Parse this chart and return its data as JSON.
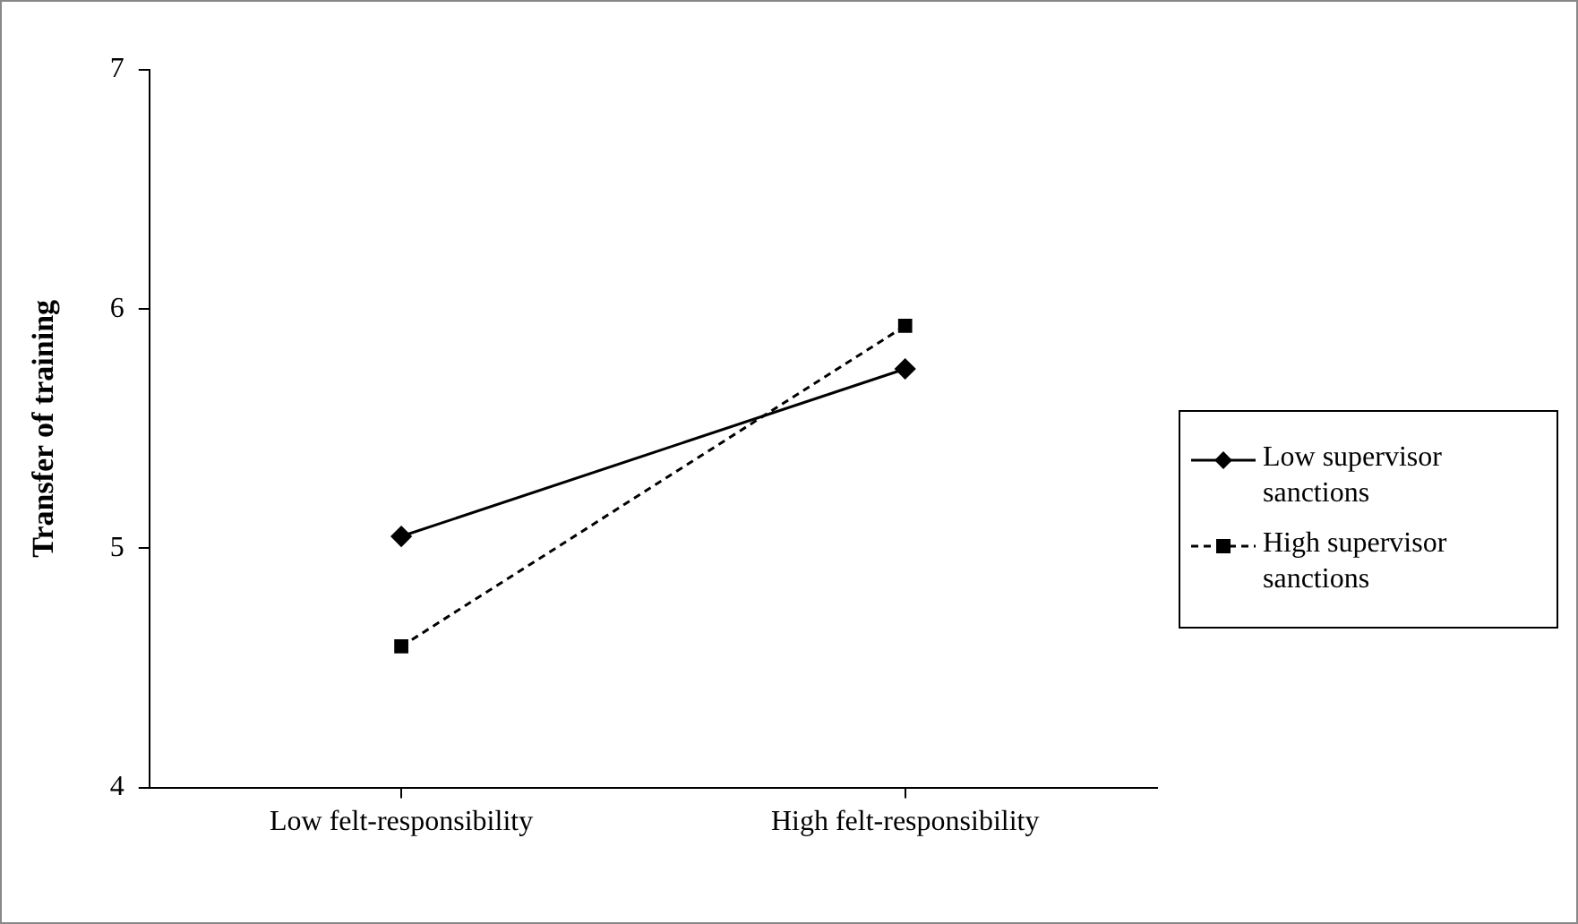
{
  "chart_data": {
    "type": "line",
    "ylabel": "Transfer of training",
    "categories": [
      "Low felt-responsibility",
      "High felt-responsibility"
    ],
    "series": [
      {
        "name": "Low supervisor sanctions",
        "color": "#000000",
        "values": [
          5.05,
          5.75
        ],
        "marker": "diamond",
        "line_style": "solid"
      },
      {
        "name": "High supervisor sanctions",
        "color": "#000000",
        "values": [
          4.59,
          5.93
        ],
        "marker": "square",
        "line_style": "dashed"
      }
    ],
    "ylim": [
      4,
      7
    ],
    "yticks": [
      4,
      5,
      6,
      7
    ],
    "grid": false,
    "legend": "right"
  }
}
